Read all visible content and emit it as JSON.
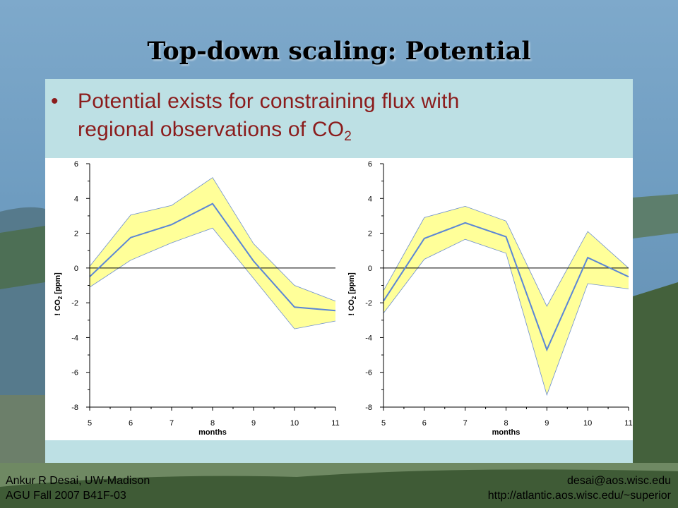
{
  "slide": {
    "title": "Top-down scaling: Potential",
    "bullet": {
      "marker": "•",
      "line1": "Potential exists for constraining flux with",
      "line2": "regional observations of CO",
      "line2_sub": "2"
    },
    "footer": {
      "left_line1": "Ankur R Desai, UW-Madison",
      "left_line2": "AGU Fall 2007 B41F-03",
      "right_line1": "desai@aos.wisc.edu",
      "right_line2": "http://atlantic.aos.wisc.edu/~superior"
    }
  },
  "colors": {
    "title": "#000000",
    "bullet_text": "#8b1c1c",
    "panel": "#bde0e4",
    "band_fill": "#ffff99",
    "band_edge": "#6d8fd0",
    "mean_line": "#5b86d6"
  },
  "chart_data": [
    {
      "type": "line",
      "x": [
        5,
        6,
        7,
        8,
        9,
        10,
        11
      ],
      "series": [
        {
          "role": "mean",
          "values": [
            -0.5,
            1.75,
            2.5,
            3.7,
            0.4,
            -2.25,
            -2.45
          ]
        },
        {
          "role": "upper",
          "values": [
            0.1,
            3.05,
            3.6,
            5.2,
            1.4,
            -1.0,
            -1.9
          ]
        },
        {
          "role": "lower",
          "values": [
            -1.1,
            0.45,
            1.45,
            2.3,
            -0.6,
            -3.5,
            -3.05
          ]
        }
      ],
      "xlabel": "months",
      "ylabel_prefix": "!",
      "ylabel_main": "CO",
      "ylabel_sub": "2",
      "ylabel_unit": "[ppm]",
      "xlim": [
        5,
        11
      ],
      "ylim": [
        -8,
        6
      ],
      "xticks": [
        5,
        6,
        7,
        8,
        9,
        10,
        11
      ],
      "yticks": [
        6,
        4,
        2,
        0,
        -2,
        -4,
        -6,
        -8
      ],
      "zero_line": true,
      "grid": false
    },
    {
      "type": "line",
      "x": [
        5,
        6,
        7,
        8,
        9,
        10,
        11
      ],
      "series": [
        {
          "role": "mean",
          "values": [
            -1.9,
            1.7,
            2.6,
            1.8,
            -4.7,
            0.6,
            -0.5
          ]
        },
        {
          "role": "upper",
          "values": [
            -1.3,
            2.9,
            3.55,
            2.7,
            -2.2,
            2.1,
            0.0
          ]
        },
        {
          "role": "lower",
          "values": [
            -2.6,
            0.5,
            1.65,
            0.85,
            -7.3,
            -0.9,
            -1.2
          ]
        }
      ],
      "xlabel": "months",
      "ylabel_prefix": "!",
      "ylabel_main": "CO",
      "ylabel_sub": "2",
      "ylabel_unit": "[ppm]",
      "xlim": [
        5,
        11
      ],
      "ylim": [
        -8,
        6
      ],
      "xticks": [
        5,
        6,
        7,
        8,
        9,
        10,
        11
      ],
      "yticks": [
        6,
        4,
        2,
        0,
        -2,
        -4,
        -6,
        -8
      ],
      "zero_line": true,
      "grid": false
    }
  ]
}
